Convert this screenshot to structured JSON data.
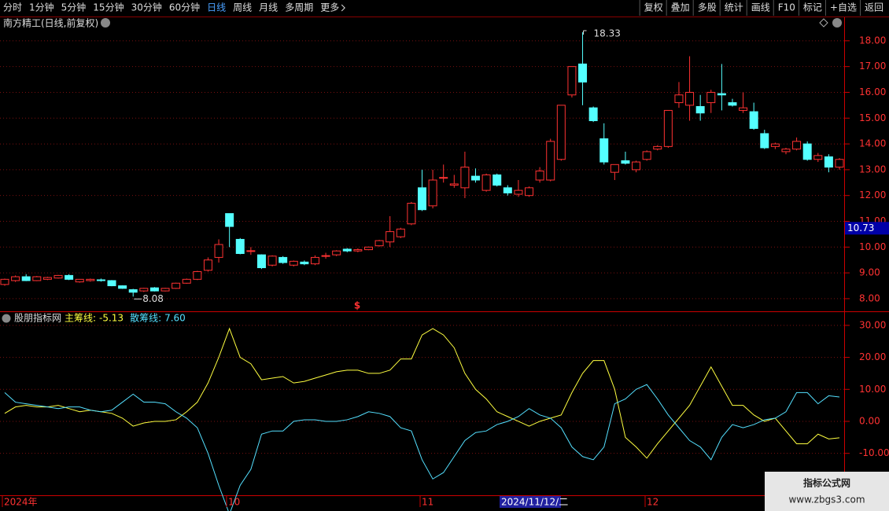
{
  "toolbar": {
    "left": [
      "分时",
      "1分钟",
      "5分钟",
      "15分钟",
      "30分钟",
      "60分钟",
      "日线",
      "周线",
      "月线",
      "多周期",
      "更多"
    ],
    "active": "日线",
    "right": [
      "复权",
      "叠加",
      "多股",
      "统计",
      "画线",
      "F10",
      "标记",
      "+自选",
      "返回"
    ]
  },
  "chart_data": [
    {
      "type": "candlestick",
      "title": "南方精工(日线,前复权)",
      "up_color": "#ff3232",
      "down_color": "#54ffff",
      "open": [
        8.55,
        8.7,
        8.85,
        8.7,
        8.75,
        8.8,
        8.9,
        8.65,
        8.7,
        8.73,
        8.7,
        8.5,
        8.35,
        8.3,
        8.42,
        8.3,
        8.4,
        8.6,
        8.75,
        9.1,
        9.6,
        11.3,
        10.3,
        9.85,
        9.7,
        9.3,
        9.6,
        9.3,
        9.42,
        9.35,
        9.64,
        9.7,
        9.92,
        9.85,
        9.9,
        10.05,
        10.2,
        10.4,
        10.9,
        12.3,
        11.6,
        12.68,
        12.4,
        12.3,
        12.75,
        12.2,
        12.8,
        12.3,
        12.05,
        12.0,
        12.6,
        12.6,
        13.4,
        15.9,
        17.1,
        15.4,
        14.2,
        12.9,
        13.35,
        13.0,
        13.4,
        13.8,
        13.9,
        15.6,
        15.5,
        15.45,
        15.6,
        15.95,
        15.6,
        15.3,
        15.25,
        14.4,
        13.9,
        13.7,
        13.8,
        14.0,
        13.4,
        13.5,
        13.1
      ],
      "high": [
        8.78,
        8.9,
        8.95,
        8.88,
        8.85,
        8.92,
        8.95,
        8.76,
        8.78,
        8.78,
        8.72,
        8.52,
        8.38,
        8.42,
        8.45,
        8.42,
        8.62,
        8.78,
        9.08,
        9.6,
        10.3,
        11.3,
        10.35,
        10.0,
        9.72,
        9.68,
        9.65,
        9.48,
        9.48,
        9.68,
        9.78,
        9.88,
        9.96,
        9.95,
        10.02,
        10.28,
        11.2,
        10.75,
        11.75,
        13.0,
        13.0,
        13.2,
        12.8,
        13.7,
        13.05,
        12.85,
        12.85,
        12.4,
        12.6,
        12.35,
        13.1,
        14.2,
        15.5,
        17.0,
        18.33,
        15.45,
        14.8,
        13.2,
        13.7,
        13.35,
        13.75,
        13.95,
        15.3,
        16.4,
        17.4,
        15.9,
        16.1,
        17.1,
        15.75,
        16.0,
        15.6,
        14.55,
        14.05,
        13.85,
        14.25,
        14.1,
        13.65,
        13.6,
        13.45
      ],
      "low": [
        8.5,
        8.65,
        8.68,
        8.68,
        8.72,
        8.78,
        8.72,
        8.62,
        8.66,
        8.66,
        8.48,
        8.38,
        8.08,
        8.26,
        8.28,
        8.28,
        8.38,
        8.58,
        8.72,
        9.05,
        9.4,
        10.0,
        9.72,
        9.7,
        9.15,
        9.25,
        9.35,
        9.25,
        9.3,
        9.3,
        9.55,
        9.65,
        9.8,
        9.8,
        9.88,
        10.02,
        10.0,
        10.35,
        10.85,
        11.4,
        11.5,
        12.5,
        12.3,
        11.9,
        12.5,
        12.15,
        12.35,
        12.0,
        11.95,
        11.95,
        12.5,
        12.55,
        13.35,
        15.8,
        15.5,
        14.85,
        13.2,
        12.6,
        13.2,
        12.9,
        13.35,
        13.75,
        13.85,
        15.4,
        14.9,
        14.9,
        15.2,
        15.3,
        15.45,
        15.2,
        14.55,
        13.8,
        13.8,
        13.6,
        13.75,
        13.35,
        13.3,
        12.9,
        13.0
      ],
      "close": [
        8.75,
        8.85,
        8.7,
        8.85,
        8.82,
        8.9,
        8.75,
        8.75,
        8.75,
        8.7,
        8.5,
        8.4,
        8.25,
        8.4,
        8.3,
        8.4,
        8.6,
        8.75,
        9.05,
        9.5,
        10.1,
        10.8,
        9.75,
        9.86,
        9.2,
        9.65,
        9.4,
        9.45,
        9.35,
        9.6,
        9.67,
        9.85,
        9.85,
        9.9,
        10.0,
        10.25,
        10.6,
        10.7,
        11.7,
        11.45,
        12.6,
        12.7,
        12.45,
        13.1,
        12.6,
        12.8,
        12.4,
        12.1,
        12.2,
        12.3,
        12.95,
        14.1,
        15.5,
        17.0,
        16.4,
        14.9,
        13.3,
        13.2,
        13.25,
        13.3,
        13.7,
        13.9,
        15.3,
        15.9,
        16.0,
        15.2,
        16.0,
        15.9,
        15.5,
        15.4,
        14.6,
        13.85,
        14.0,
        13.8,
        14.1,
        13.4,
        13.55,
        13.1,
        13.4
      ],
      "ylim": [
        7.54,
        18.91
      ],
      "yticks": [
        {
          "value": 8,
          "label": "8.00"
        },
        {
          "value": 9,
          "label": "9.00"
        },
        {
          "value": 10,
          "label": "10.00"
        },
        {
          "value": 11,
          "label": "11.00"
        },
        {
          "value": 12,
          "label": "12.00"
        },
        {
          "value": 13,
          "label": "13.00"
        },
        {
          "value": 14,
          "label": "14.00"
        },
        {
          "value": 15,
          "label": "15.00"
        },
        {
          "value": 16,
          "label": "16.00"
        },
        {
          "value": 17,
          "label": "17.00"
        },
        {
          "value": 18,
          "label": "18.00"
        }
      ],
      "current_price": 10.73,
      "marker": "$",
      "grid": true
    },
    {
      "type": "line",
      "title": "股朋指标网",
      "series": [
        {
          "name": "主筹线",
          "color": "#ffff40",
          "legend_label": "-5.13",
          "values": [
            2.5,
            4.5,
            5,
            4.5,
            4.5,
            5,
            4,
            3,
            3.5,
            3,
            2.5,
            1,
            -1.5,
            -0.5,
            0,
            0,
            0.5,
            3,
            6,
            12,
            20,
            29,
            20,
            18,
            13,
            13.5,
            14,
            12,
            12.5,
            13.5,
            14.5,
            15.5,
            16,
            16,
            15,
            15,
            16,
            19.5,
            19.5,
            27,
            29,
            27,
            23,
            15,
            10,
            7,
            3,
            1.5,
            0,
            -1.5,
            0,
            1,
            2,
            9,
            15,
            19,
            19,
            10,
            -5,
            -8,
            -11.5,
            -7,
            -3,
            1,
            5,
            11,
            17,
            11,
            5,
            5,
            2,
            0,
            1,
            -3,
            -7,
            -7,
            -4,
            -5.5,
            -5.13
          ]
        },
        {
          "name": "散筹线",
          "color": "#54e0ff",
          "legend_label": "7.60",
          "values": [
            9,
            6,
            5.5,
            5,
            4.5,
            4,
            4.5,
            4.5,
            3.5,
            3,
            3.5,
            6,
            8.5,
            6,
            6,
            5.5,
            3,
            1,
            -2,
            -10,
            -20,
            -29,
            -20,
            -15,
            -4,
            -3,
            -3,
            0,
            0.5,
            0.5,
            0,
            0,
            0.5,
            1.5,
            3,
            2.5,
            1.5,
            -2,
            -3,
            -12,
            -18,
            -16,
            -11,
            -6,
            -3.5,
            -3,
            -1,
            0,
            1.5,
            4,
            2,
            1,
            -2,
            -8,
            -11,
            -12,
            -8,
            5.5,
            7,
            10,
            11.5,
            7,
            2,
            -2,
            -6,
            -8,
            -12,
            -5,
            -1,
            -2,
            -1,
            0.5,
            1,
            3,
            9,
            9,
            5.5,
            8,
            7.6
          ]
        }
      ],
      "ylim": [
        -23.1,
        33.9
      ],
      "yticks": [
        {
          "value": 30,
          "label": "30.00"
        },
        {
          "value": 20,
          "label": "20.00"
        },
        {
          "value": 10,
          "label": "10.00"
        },
        {
          "value": 0,
          "label": "0.00"
        },
        {
          "value": -10,
          "label": "-10.00"
        }
      ],
      "grid": true
    }
  ],
  "x_axis_labels": [
    "2024年",
    "10",
    "11",
    "12"
  ],
  "cursor_date": "2024/11/12/二",
  "watermark": {
    "title": "指标公式网",
    "url": "www.zbgs3.com"
  }
}
